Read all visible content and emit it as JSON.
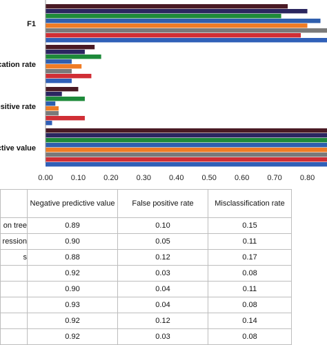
{
  "chart_data": {
    "type": "bar",
    "orientation": "horizontal",
    "categories": [
      "F1",
      "ication rate",
      "ositive rate",
      "ictive value"
    ],
    "xlim": [
      0,
      0.86
    ],
    "xticks": [
      "0.00",
      "0.10",
      "0.20",
      "0.30",
      "0.40",
      "0.50",
      "0.60",
      "0.70",
      "0.80"
    ],
    "series": [
      {
        "color": "#3060b8",
        "values": [
          0.86,
          0.08,
          0.02,
          0.86
        ]
      },
      {
        "color": "#d02e35",
        "values": [
          0.78,
          0.14,
          0.12,
          0.86
        ]
      },
      {
        "color": "#7a7a7a",
        "values": [
          0.86,
          0.08,
          0.04,
          0.86
        ]
      },
      {
        "color": "#ef7c25",
        "values": [
          0.8,
          0.11,
          0.04,
          0.86
        ]
      },
      {
        "color": "#2f5fae",
        "values": [
          0.84,
          0.08,
          0.03,
          0.86
        ]
      },
      {
        "color": "#1e8a3a",
        "values": [
          0.72,
          0.17,
          0.12,
          0.86
        ]
      },
      {
        "color": "#2b2660",
        "values": [
          0.8,
          0.12,
          0.05,
          0.86
        ]
      },
      {
        "color": "#4a1a24",
        "values": [
          0.74,
          0.15,
          0.1,
          0.86
        ]
      }
    ],
    "grid": false
  },
  "table": {
    "headers": [
      "",
      "Negative predictive value",
      "False positive rate",
      "Misclassification rate"
    ],
    "rows": [
      [
        "on tree",
        "0.89",
        "0.10",
        "0.15"
      ],
      [
        "ression",
        "0.90",
        "0.05",
        "0.11"
      ],
      [
        "s",
        "0.88",
        "0.12",
        "0.17"
      ],
      [
        "",
        "0.92",
        "0.03",
        "0.08"
      ],
      [
        "",
        "0.90",
        "0.04",
        "0.11"
      ],
      [
        "",
        "0.93",
        "0.04",
        "0.08"
      ],
      [
        "",
        "0.92",
        "0.12",
        "0.14"
      ],
      [
        "",
        "0.92",
        "0.03",
        "0.08"
      ]
    ]
  }
}
